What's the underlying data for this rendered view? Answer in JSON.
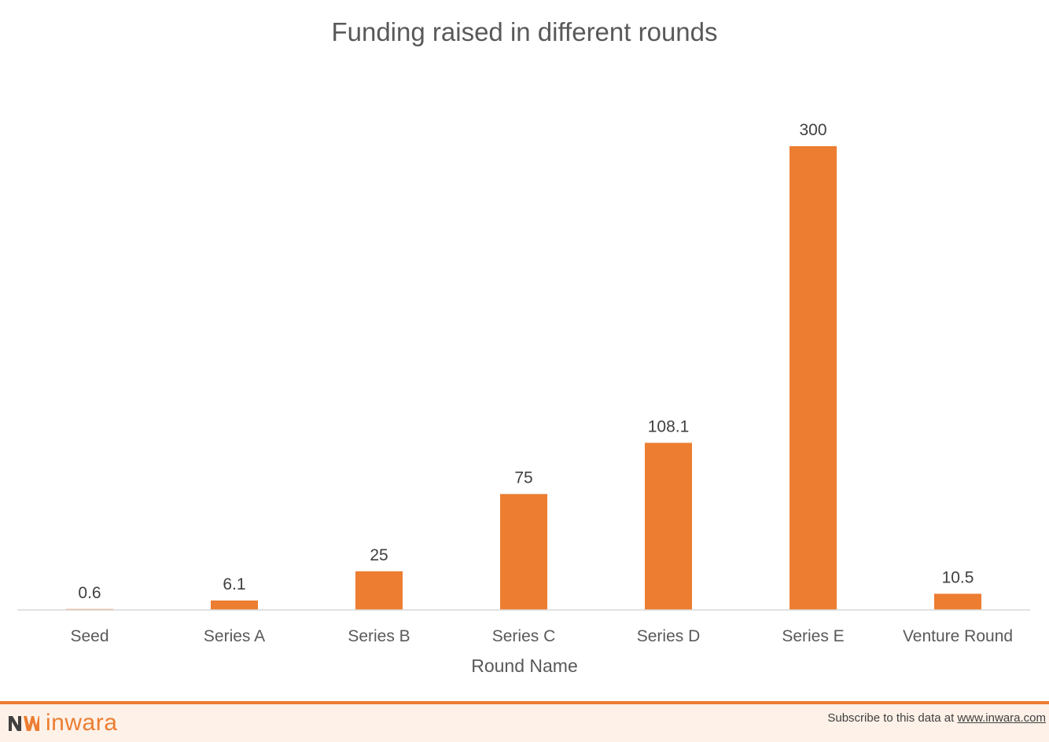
{
  "chart_data": {
    "type": "bar",
    "title": "Funding raised in different rounds",
    "xlabel": "Round Name",
    "ylabel": "",
    "categories": [
      "Seed",
      "Series A",
      "Series B",
      "Series C",
      "Series D",
      "Series E",
      "Venture Round"
    ],
    "values": [
      0.6,
      6.1,
      25,
      75,
      108.1,
      300,
      10.5
    ],
    "value_labels": [
      "0.6",
      "6.1",
      "25",
      "75",
      "108.1",
      "300",
      "10.5"
    ],
    "ylim": [
      0,
      300
    ],
    "grid": false,
    "legend": "none",
    "bar_color": "#ec7d31"
  },
  "footer": {
    "logo_text": "inwara",
    "subscribe_text": "Subscribe to this data at ",
    "subscribe_link": "www.inwara.com",
    "accent_color": "#ec7d31"
  }
}
